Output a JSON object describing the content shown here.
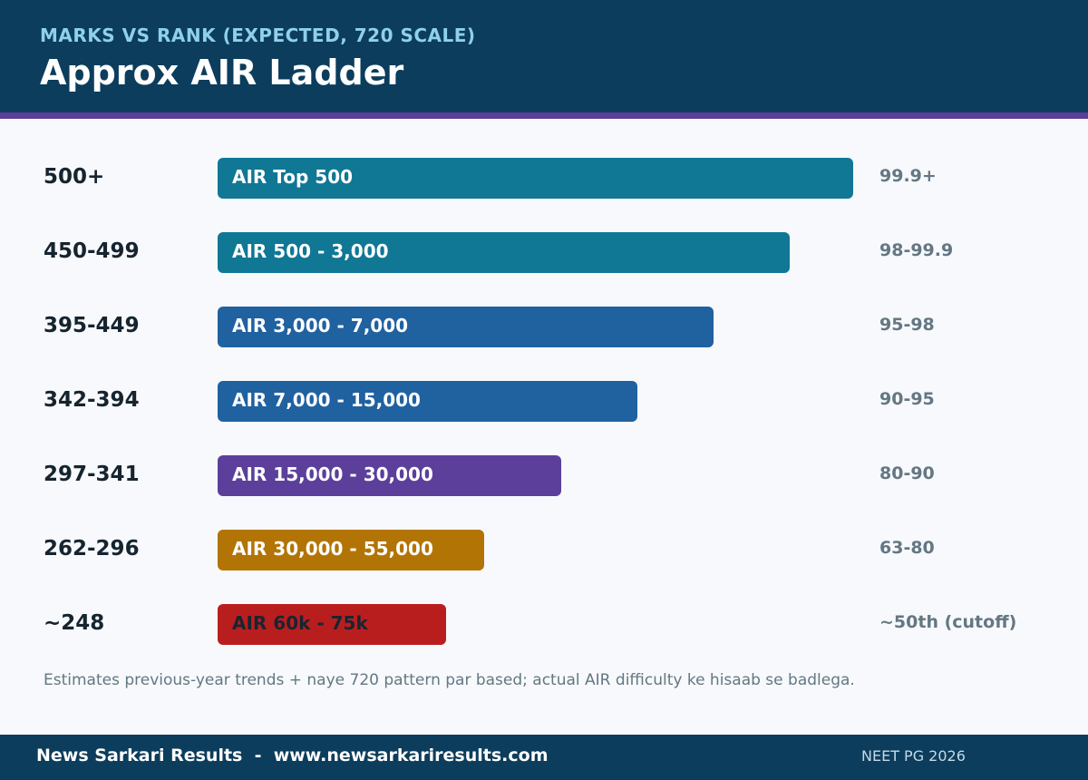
{
  "header": {
    "subtitle": "MARKS VS RANK (EXPECTED, 720 SCALE)",
    "title": "Approx AIR Ladder"
  },
  "chart_data": {
    "type": "bar",
    "orientation": "horizontal",
    "categories": [
      "500+",
      "450-499",
      "395-449",
      "342-394",
      "297-341",
      "262-296",
      "~248"
    ],
    "bar_labels": [
      "AIR Top 500",
      "AIR 500 - 3,000",
      "AIR 3,000 - 7,000",
      "AIR 7,000 - 15,000",
      "AIR 15,000 - 30,000",
      "AIR 30,000 - 55,000",
      "AIR 60k - 75k"
    ],
    "percentiles": [
      "99.9+",
      "98-99.9",
      "95-98",
      "90-95",
      "80-90",
      "63-80",
      "~50th (cutoff)"
    ],
    "values": [
      100,
      90,
      78,
      66,
      54,
      42,
      36
    ],
    "colors": [
      "#107795",
      "#107795",
      "#2061a0",
      "#2061a0",
      "#5b3f9b",
      "#b37406",
      "#b91e1f"
    ],
    "label_colors": [
      "#ffffff",
      "#ffffff",
      "#ffffff",
      "#ffffff",
      "#ffffff",
      "#ffffff",
      "#1a2430"
    ],
    "grid": false,
    "legend": "none"
  },
  "note": "Estimates previous-year trends + naye 720 pattern par based; actual AIR difficulty ke hisaab se badlega.",
  "footer": {
    "left": "News Sarkari Results  -  www.newsarkariresults.com",
    "right": "NEET PG 2026"
  }
}
